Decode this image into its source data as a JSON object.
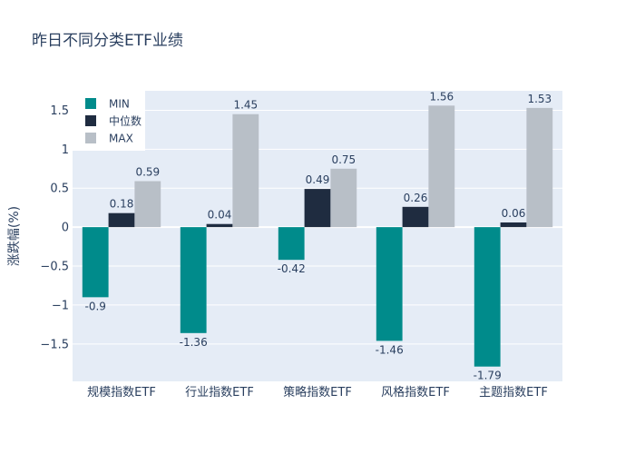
{
  "chart_data": {
    "type": "bar",
    "title": "昨日不同分类ETF业绩",
    "xlabel": "",
    "ylabel": "涨跌幅(%)",
    "categories": [
      "规模指数ETF",
      "行业指数ETF",
      "策略指数ETF",
      "风格指数ETF",
      "主题指数ETF"
    ],
    "series": [
      {
        "name": "MIN",
        "color": "#008b8b",
        "values": [
          -0.9,
          -1.36,
          -0.42,
          -1.46,
          -1.79
        ],
        "labels": [
          "-0.9",
          "-1.36",
          "-0.42",
          "-1.46",
          "-1.79"
        ]
      },
      {
        "name": "中位数",
        "color": "#1f2c40",
        "values": [
          0.18,
          0.04,
          0.49,
          0.26,
          0.06
        ],
        "labels": [
          "0.18",
          "0.04",
          "0.49",
          "0.26",
          "0.06"
        ]
      },
      {
        "name": "MAX",
        "color": "#b8bfc7",
        "values": [
          0.59,
          1.45,
          0.75,
          1.56,
          1.53
        ],
        "labels": [
          "0.59",
          "1.45",
          "0.75",
          "1.56",
          "1.53"
        ]
      }
    ],
    "ylim": [
      -1.98,
      1.75
    ],
    "yticks": [
      1.5,
      1,
      0.5,
      0,
      -0.5,
      -1,
      -1.5
    ],
    "ytick_labels": [
      "1.5",
      "1",
      "0.5",
      "0",
      "−0.5",
      "−1",
      "−1.5"
    ],
    "legend_position": "top-left",
    "grid": true
  }
}
